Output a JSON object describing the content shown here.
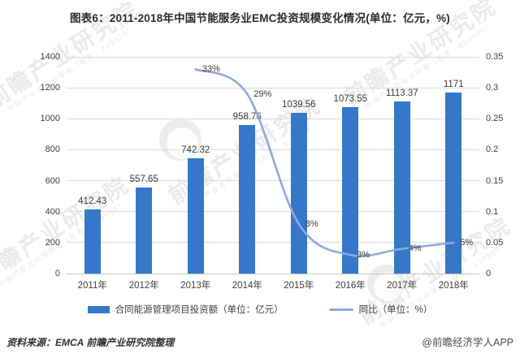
{
  "title": "图表6：2011-2018年中国节能服务业EMC投资规模变化情况(单位：亿元，%)",
  "chart_data": {
    "type": "bar",
    "subtype": "combo bar + smooth line, dual axis",
    "categories": [
      "2011年",
      "2012年",
      "2013年",
      "2014年",
      "2015年",
      "2016年",
      "2017年",
      "2018年"
    ],
    "series": [
      {
        "name": "合同能源管理项目投资额（单位：亿元）",
        "type": "bar",
        "axis": "left",
        "values": [
          412.43,
          557.65,
          742.32,
          958.76,
          1039.56,
          1073.55,
          1113.37,
          1171
        ],
        "data_labels": [
          "412.43",
          "557.65",
          "742.32",
          "958.76",
          "1039.56",
          "1073.55",
          "1113.37",
          "1171"
        ]
      },
      {
        "name": "同比（单位：%）",
        "type": "line",
        "axis": "right",
        "values": [
          null,
          null,
          0.33,
          0.29,
          0.08,
          0.03,
          0.04,
          0.05
        ],
        "data_labels": [
          "",
          "",
          "33%",
          "29%",
          "8%",
          "3%",
          "4%",
          "5%"
        ]
      }
    ],
    "left_axis": {
      "min": 0,
      "max": 1400,
      "step": 200,
      "ticks_top_down": [
        "1400",
        "1200",
        "1000",
        "800",
        "600",
        "400",
        "200",
        "0"
      ]
    },
    "right_axis": {
      "min": 0,
      "max": 0.35,
      "step": 0.05,
      "ticks_top_down": [
        "0.35",
        "0.3",
        "0.25",
        "0.2",
        "0.15",
        "0.1",
        "0.05",
        "0"
      ]
    },
    "grid": true,
    "legend_position": "bottom"
  },
  "colors": {
    "bar": "#3577c9",
    "line": "#8faadc",
    "grid": "#dcdcdc",
    "axis_line": "#c6c6c6",
    "axis_text": "#404040",
    "title_text": "#2b2b2b"
  },
  "legend": {
    "items": [
      {
        "label": "合同能源管理项目投资额（单位：亿元）",
        "swatch": "bar"
      },
      {
        "label": "同比（单位：%）",
        "swatch": "line"
      }
    ]
  },
  "footer": {
    "source_label": "资料来源：",
    "source_text": "EMCA 前瞻产业研究院整理",
    "credit": "@前瞻经济学人APP"
  },
  "watermark": {
    "text": "前瞻产业研究院",
    "subtext": "中国产业咨询领导者（股票：839599）"
  }
}
